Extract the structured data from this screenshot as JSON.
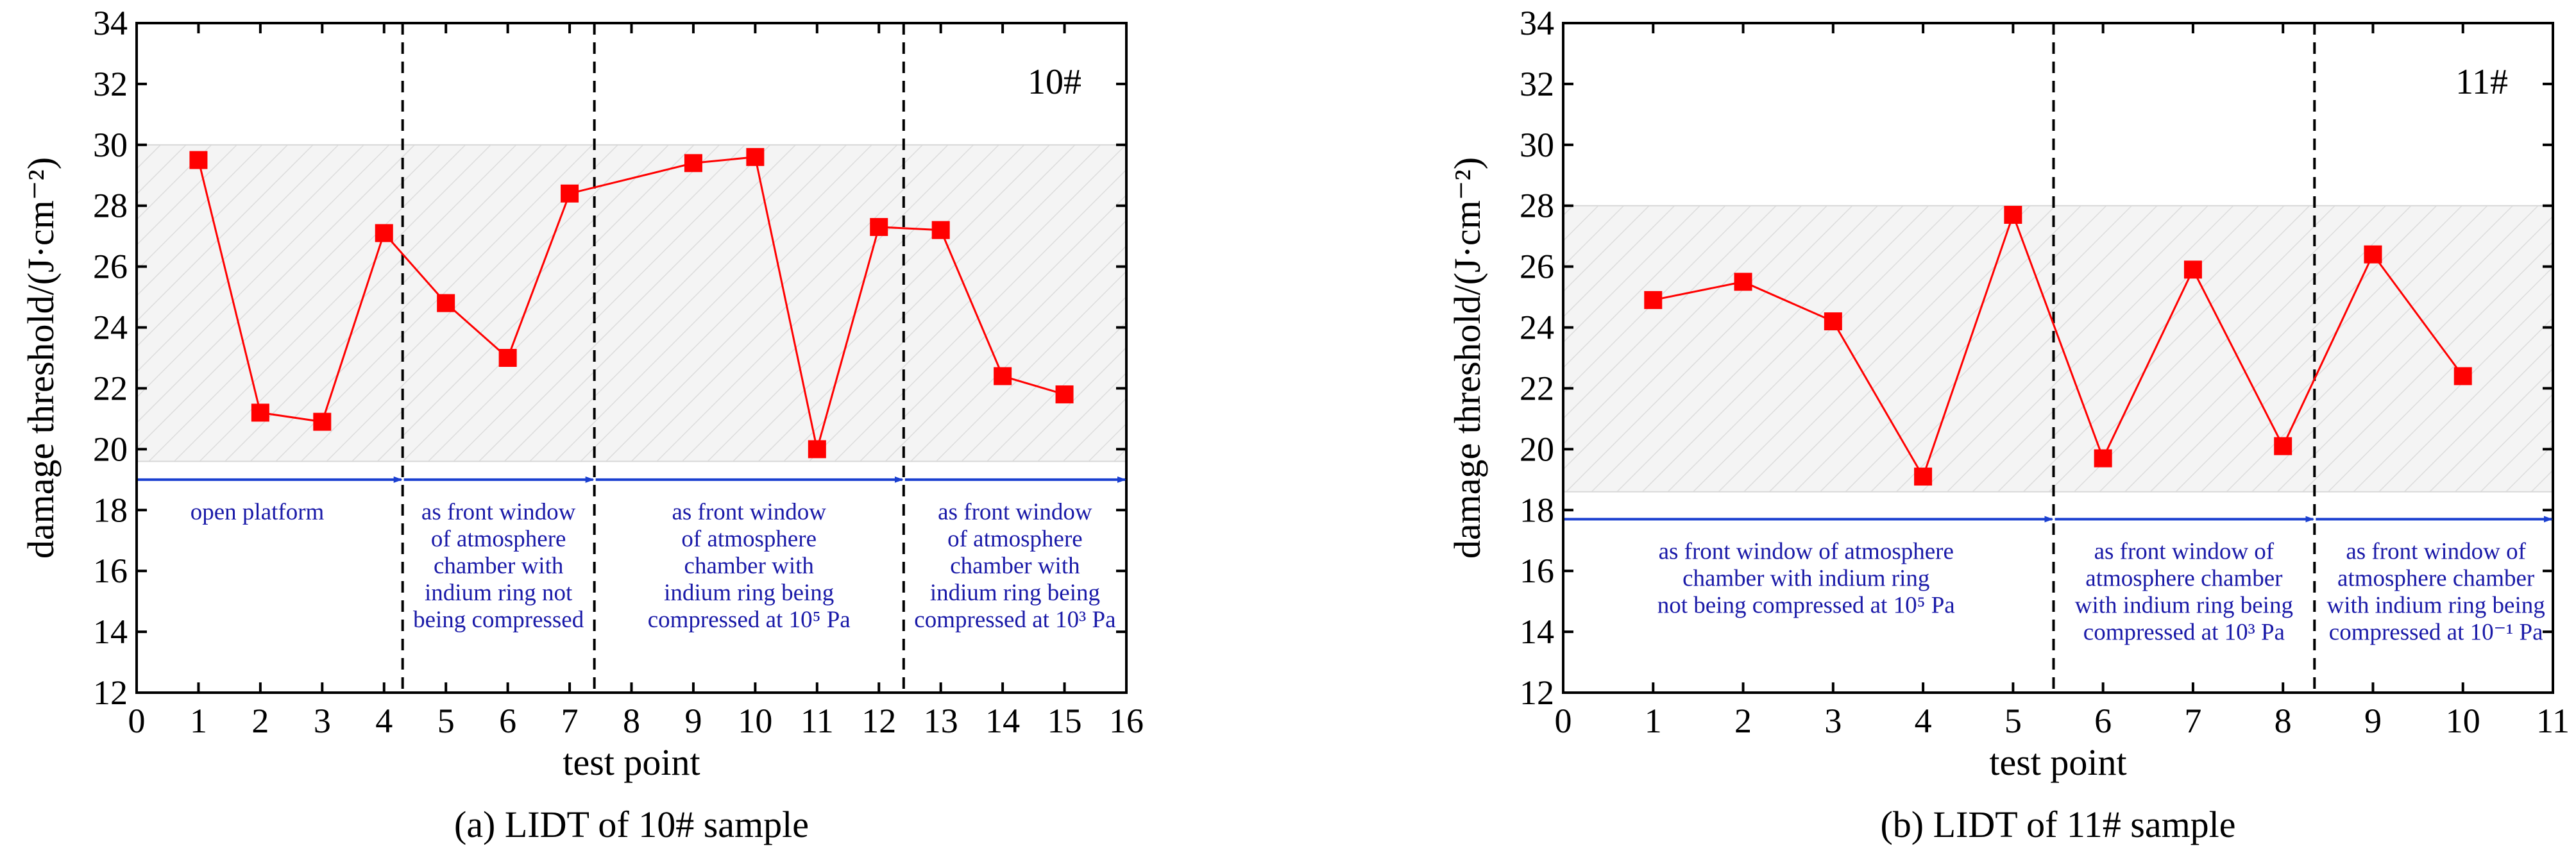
{
  "colors": {
    "series": "#ff0000",
    "annotation": "#1a1aa8",
    "arrow": "#1a3fd0",
    "band": "#d9d9d9"
  },
  "chart_data": [
    {
      "type": "line",
      "panel_label": "10#",
      "caption": "(a) LIDT of 10# sample",
      "xlabel": "test point",
      "ylabel": "damage threshold/(J·cm⁻²)",
      "xlim": [
        0,
        16
      ],
      "ylim": [
        12,
        34
      ],
      "xticks": [
        0,
        1,
        2,
        3,
        4,
        5,
        6,
        7,
        8,
        9,
        10,
        11,
        12,
        13,
        14,
        15,
        16
      ],
      "yticks": [
        12,
        14,
        16,
        18,
        20,
        22,
        24,
        26,
        28,
        30,
        32,
        34
      ],
      "x": [
        1,
        2,
        3,
        4,
        5,
        6,
        7,
        9,
        10,
        11,
        12,
        13,
        14,
        15
      ],
      "y": [
        29.5,
        21.2,
        20.9,
        27.1,
        24.8,
        23.0,
        28.4,
        29.4,
        29.6,
        20.0,
        27.3,
        27.2,
        22.4,
        21.8
      ],
      "shaded_band": [
        19.6,
        30.0
      ],
      "dividers": [
        4.3,
        7.4,
        12.4
      ],
      "arrow_y": 19.0,
      "regions": [
        {
          "x_center": 1.95,
          "lines": [
            "open platform"
          ]
        },
        {
          "x_center": 5.85,
          "lines": [
            "as front window",
            "of atmosphere",
            "chamber with",
            "indium ring not",
            "being compressed"
          ]
        },
        {
          "x_center": 9.9,
          "lines": [
            "as front window",
            "of atmosphere",
            "chamber with",
            "indium ring being",
            "compressed at 10⁵ Pa"
          ]
        },
        {
          "x_center": 14.2,
          "lines": [
            "as front window",
            "of atmosphere",
            "chamber with",
            "indium ring being",
            "compressed at 10³ Pa"
          ]
        }
      ]
    },
    {
      "type": "line",
      "panel_label": "11#",
      "caption": "(b) LIDT of 11# sample",
      "xlabel": "test point",
      "ylabel": "damage threshold/(J·cm⁻²)",
      "xlim": [
        0,
        11
      ],
      "ylim": [
        12,
        34
      ],
      "xticks": [
        0,
        1,
        2,
        3,
        4,
        5,
        6,
        7,
        8,
        9,
        10,
        11
      ],
      "yticks": [
        12,
        14,
        16,
        18,
        20,
        22,
        24,
        26,
        28,
        30,
        32,
        34
      ],
      "x": [
        1,
        2,
        3,
        4,
        5,
        6,
        7,
        8,
        9,
        10
      ],
      "y": [
        24.9,
        25.5,
        24.2,
        19.1,
        27.7,
        19.7,
        25.9,
        20.1,
        26.4,
        22.4
      ],
      "shaded_band": [
        18.6,
        28.0
      ],
      "dividers": [
        5.45,
        8.35
      ],
      "arrow_y": 17.7,
      "regions": [
        {
          "x_center": 2.7,
          "lines": [
            "as front window of atmosphere",
            "chamber with indium ring",
            "not being compressed at 10⁵ Pa"
          ]
        },
        {
          "x_center": 6.9,
          "lines": [
            "as front window of",
            "atmosphere chamber",
            "with indium ring being",
            "compressed at 10³ Pa"
          ]
        },
        {
          "x_center": 9.7,
          "lines": [
            "as front window of",
            "atmosphere chamber",
            "with indium ring being",
            "compressed at 10⁻¹ Pa"
          ]
        }
      ]
    }
  ]
}
